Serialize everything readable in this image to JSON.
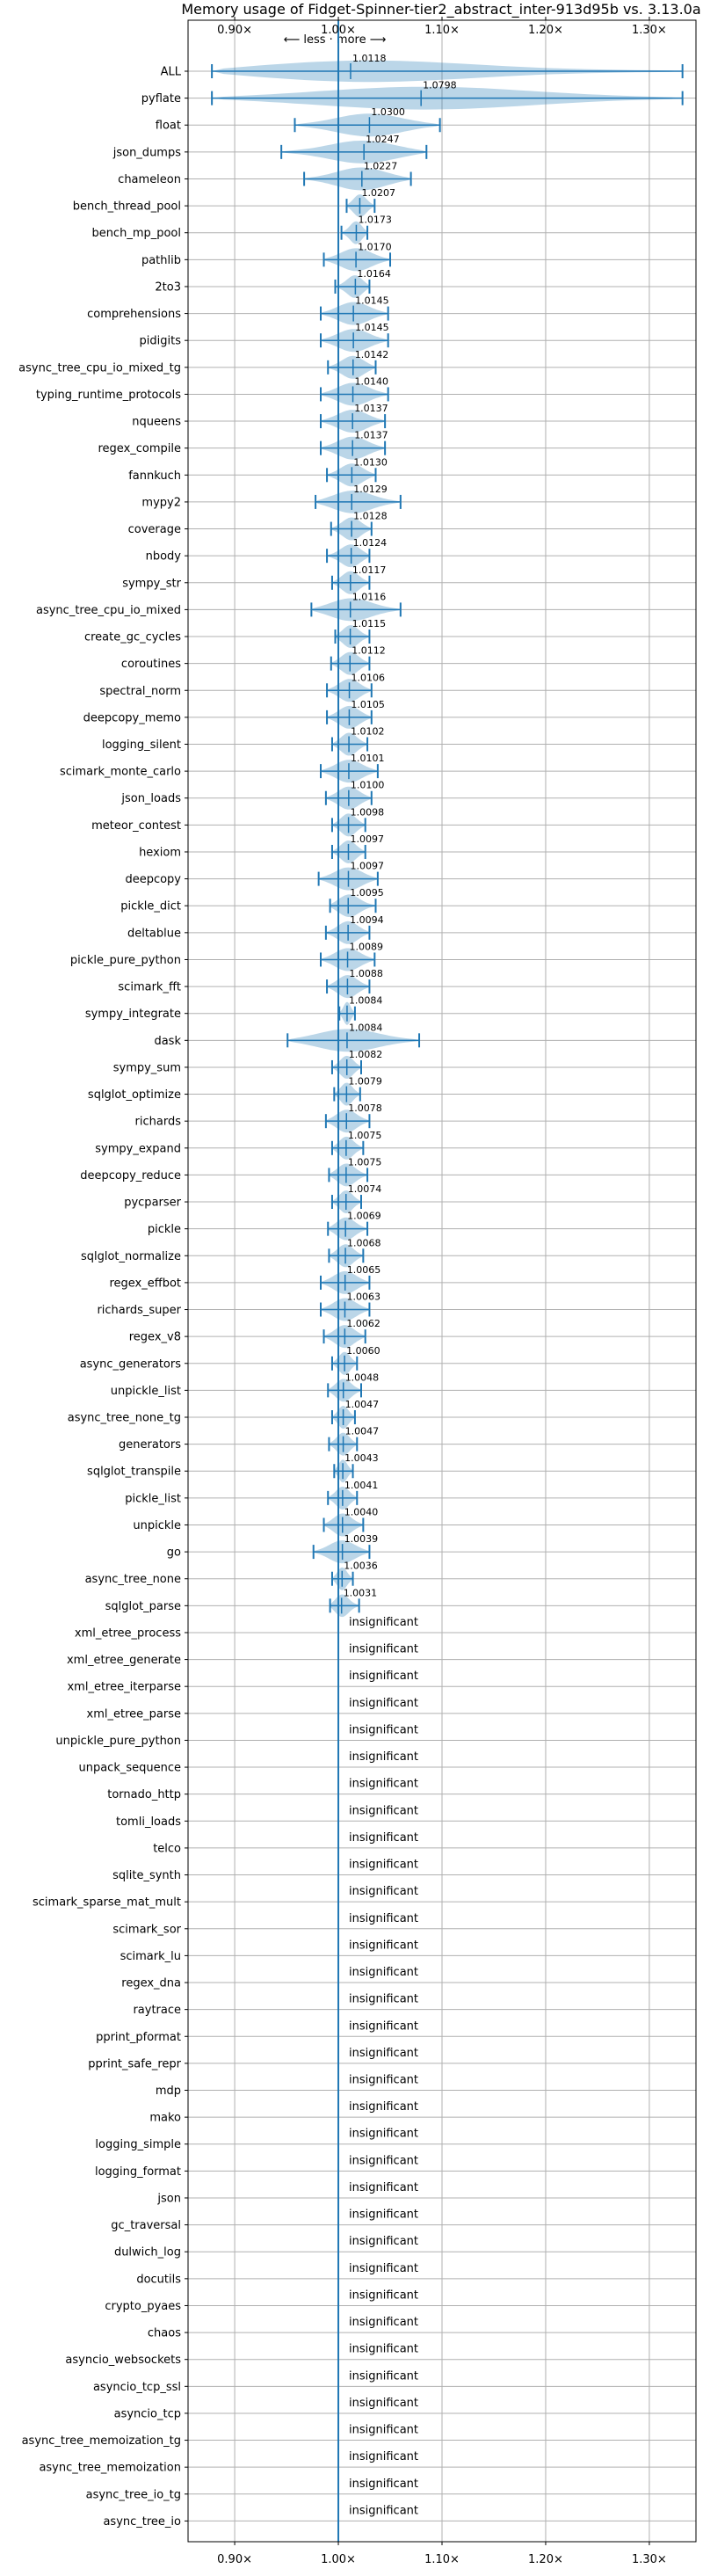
{
  "chart_data": {
    "type": "violin",
    "title": "Memory usage of Fidget-Spinner-tier2_abstract_inter-913d95b vs. 3.13.0a",
    "direction_label": "⟵ less · more ⟶",
    "xlim": [
      0.855,
      1.345
    ],
    "xticks": [
      0.9,
      1.0,
      1.1,
      1.2,
      1.3
    ],
    "xtick_labels": [
      "0.90×",
      "1.00×",
      "1.10×",
      "1.20×",
      "1.30×"
    ],
    "grid": true,
    "insignificant_label": "insignificant",
    "rows": [
      {
        "name": "ALL",
        "value": "1.0118",
        "mean": 1.0118,
        "min": 0.878,
        "max": 1.332
      },
      {
        "name": "pyflate",
        "value": "1.0798",
        "mean": 1.0798,
        "min": 0.878,
        "max": 1.332
      },
      {
        "name": "float",
        "value": "1.0300",
        "mean": 1.03,
        "min": 0.958,
        "max": 1.098
      },
      {
        "name": "json_dumps",
        "value": "1.0247",
        "mean": 1.0247,
        "min": 0.945,
        "max": 1.085
      },
      {
        "name": "chameleon",
        "value": "1.0227",
        "mean": 1.0227,
        "min": 0.967,
        "max": 1.07
      },
      {
        "name": "bench_thread_pool",
        "value": "1.0207",
        "mean": 1.0207,
        "min": 1.008,
        "max": 1.035
      },
      {
        "name": "bench_mp_pool",
        "value": "1.0173",
        "mean": 1.0173,
        "min": 1.003,
        "max": 1.028
      },
      {
        "name": "pathlib",
        "value": "1.0170",
        "mean": 1.017,
        "min": 0.986,
        "max": 1.05
      },
      {
        "name": "2to3",
        "value": "1.0164",
        "mean": 1.0164,
        "min": 0.997,
        "max": 1.03
      },
      {
        "name": "comprehensions",
        "value": "1.0145",
        "mean": 1.0145,
        "min": 0.983,
        "max": 1.048
      },
      {
        "name": "pidigits",
        "value": "1.0145",
        "mean": 1.0145,
        "min": 0.983,
        "max": 1.048
      },
      {
        "name": "async_tree_cpu_io_mixed_tg",
        "value": "1.0142",
        "mean": 1.0142,
        "min": 0.99,
        "max": 1.036
      },
      {
        "name": "typing_runtime_protocols",
        "value": "1.0140",
        "mean": 1.014,
        "min": 0.983,
        "max": 1.048
      },
      {
        "name": "nqueens",
        "value": "1.0137",
        "mean": 1.0137,
        "min": 0.983,
        "max": 1.045
      },
      {
        "name": "regex_compile",
        "value": "1.0137",
        "mean": 1.0137,
        "min": 0.983,
        "max": 1.045
      },
      {
        "name": "fannkuch",
        "value": "1.0130",
        "mean": 1.013,
        "min": 0.989,
        "max": 1.036
      },
      {
        "name": "mypy2",
        "value": "1.0129",
        "mean": 1.0129,
        "min": 0.978,
        "max": 1.06
      },
      {
        "name": "coverage",
        "value": "1.0128",
        "mean": 1.0128,
        "min": 0.993,
        "max": 1.032
      },
      {
        "name": "nbody",
        "value": "1.0124",
        "mean": 1.0124,
        "min": 0.989,
        "max": 1.03
      },
      {
        "name": "sympy_str",
        "value": "1.0117",
        "mean": 1.0117,
        "min": 0.994,
        "max": 1.03
      },
      {
        "name": "async_tree_cpu_io_mixed",
        "value": "1.0116",
        "mean": 1.0116,
        "min": 0.974,
        "max": 1.06
      },
      {
        "name": "create_gc_cycles",
        "value": "1.0115",
        "mean": 1.0115,
        "min": 0.997,
        "max": 1.03
      },
      {
        "name": "coroutines",
        "value": "1.0112",
        "mean": 1.0112,
        "min": 0.993,
        "max": 1.03
      },
      {
        "name": "spectral_norm",
        "value": "1.0106",
        "mean": 1.0106,
        "min": 0.989,
        "max": 1.032
      },
      {
        "name": "deepcopy_memo",
        "value": "1.0105",
        "mean": 1.0105,
        "min": 0.989,
        "max": 1.032
      },
      {
        "name": "logging_silent",
        "value": "1.0102",
        "mean": 1.0102,
        "min": 0.994,
        "max": 1.028
      },
      {
        "name": "scimark_monte_carlo",
        "value": "1.0101",
        "mean": 1.0101,
        "min": 0.983,
        "max": 1.038
      },
      {
        "name": "json_loads",
        "value": "1.0100",
        "mean": 1.01,
        "min": 0.988,
        "max": 1.032
      },
      {
        "name": "meteor_contest",
        "value": "1.0098",
        "mean": 1.0098,
        "min": 0.994,
        "max": 1.026
      },
      {
        "name": "hexiom",
        "value": "1.0097",
        "mean": 1.0097,
        "min": 0.994,
        "max": 1.026
      },
      {
        "name": "deepcopy",
        "value": "1.0097",
        "mean": 1.0097,
        "min": 0.981,
        "max": 1.038
      },
      {
        "name": "pickle_dict",
        "value": "1.0095",
        "mean": 1.0095,
        "min": 0.992,
        "max": 1.036
      },
      {
        "name": "deltablue",
        "value": "1.0094",
        "mean": 1.0094,
        "min": 0.988,
        "max": 1.03
      },
      {
        "name": "pickle_pure_python",
        "value": "1.0089",
        "mean": 1.0089,
        "min": 0.983,
        "max": 1.035
      },
      {
        "name": "scimark_fft",
        "value": "1.0088",
        "mean": 1.0088,
        "min": 0.989,
        "max": 1.03
      },
      {
        "name": "sympy_integrate",
        "value": "1.0084",
        "mean": 1.0084,
        "min": 1.001,
        "max": 1.016
      },
      {
        "name": "dask",
        "value": "1.0084",
        "mean": 1.0084,
        "min": 0.951,
        "max": 1.078
      },
      {
        "name": "sympy_sum",
        "value": "1.0082",
        "mean": 1.0082,
        "min": 0.994,
        "max": 1.022
      },
      {
        "name": "sqlglot_optimize",
        "value": "1.0079",
        "mean": 1.0079,
        "min": 0.996,
        "max": 1.021
      },
      {
        "name": "richards",
        "value": "1.0078",
        "mean": 1.0078,
        "min": 0.988,
        "max": 1.03
      },
      {
        "name": "sympy_expand",
        "value": "1.0075",
        "mean": 1.0075,
        "min": 0.994,
        "max": 1.024
      },
      {
        "name": "deepcopy_reduce",
        "value": "1.0075",
        "mean": 1.0075,
        "min": 0.991,
        "max": 1.028
      },
      {
        "name": "pycparser",
        "value": "1.0074",
        "mean": 1.0074,
        "min": 0.994,
        "max": 1.022
      },
      {
        "name": "pickle",
        "value": "1.0069",
        "mean": 1.0069,
        "min": 0.99,
        "max": 1.028
      },
      {
        "name": "sqlglot_normalize",
        "value": "1.0068",
        "mean": 1.0068,
        "min": 0.991,
        "max": 1.024
      },
      {
        "name": "regex_effbot",
        "value": "1.0065",
        "mean": 1.0065,
        "min": 0.983,
        "max": 1.03
      },
      {
        "name": "richards_super",
        "value": "1.0063",
        "mean": 1.0063,
        "min": 0.983,
        "max": 1.03
      },
      {
        "name": "regex_v8",
        "value": "1.0062",
        "mean": 1.0062,
        "min": 0.986,
        "max": 1.026
      },
      {
        "name": "async_generators",
        "value": "1.0060",
        "mean": 1.006,
        "min": 0.994,
        "max": 1.018
      },
      {
        "name": "unpickle_list",
        "value": "1.0048",
        "mean": 1.0048,
        "min": 0.99,
        "max": 1.022
      },
      {
        "name": "async_tree_none_tg",
        "value": "1.0047",
        "mean": 1.0047,
        "min": 0.994,
        "max": 1.016
      },
      {
        "name": "generators",
        "value": "1.0047",
        "mean": 1.0047,
        "min": 0.991,
        "max": 1.018
      },
      {
        "name": "sqlglot_transpile",
        "value": "1.0043",
        "mean": 1.0043,
        "min": 0.996,
        "max": 1.014
      },
      {
        "name": "pickle_list",
        "value": "1.0041",
        "mean": 1.0041,
        "min": 0.99,
        "max": 1.018
      },
      {
        "name": "unpickle",
        "value": "1.0040",
        "mean": 1.004,
        "min": 0.986,
        "max": 1.024
      },
      {
        "name": "go",
        "value": "1.0039",
        "mean": 1.0039,
        "min": 0.976,
        "max": 1.03
      },
      {
        "name": "async_tree_none",
        "value": "1.0036",
        "mean": 1.0036,
        "min": 0.994,
        "max": 1.014
      },
      {
        "name": "sqlglot_parse",
        "value": "1.0031",
        "mean": 1.0031,
        "min": 0.992,
        "max": 1.02
      },
      {
        "name": "xml_etree_process",
        "value": "insignificant"
      },
      {
        "name": "xml_etree_generate",
        "value": "insignificant"
      },
      {
        "name": "xml_etree_iterparse",
        "value": "insignificant"
      },
      {
        "name": "xml_etree_parse",
        "value": "insignificant"
      },
      {
        "name": "unpickle_pure_python",
        "value": "insignificant"
      },
      {
        "name": "unpack_sequence",
        "value": "insignificant"
      },
      {
        "name": "tornado_http",
        "value": "insignificant"
      },
      {
        "name": "tomli_loads",
        "value": "insignificant"
      },
      {
        "name": "telco",
        "value": "insignificant"
      },
      {
        "name": "sqlite_synth",
        "value": "insignificant"
      },
      {
        "name": "scimark_sparse_mat_mult",
        "value": "insignificant"
      },
      {
        "name": "scimark_sor",
        "value": "insignificant"
      },
      {
        "name": "scimark_lu",
        "value": "insignificant"
      },
      {
        "name": "regex_dna",
        "value": "insignificant"
      },
      {
        "name": "raytrace",
        "value": "insignificant"
      },
      {
        "name": "pprint_pformat",
        "value": "insignificant"
      },
      {
        "name": "pprint_safe_repr",
        "value": "insignificant"
      },
      {
        "name": "mdp",
        "value": "insignificant"
      },
      {
        "name": "mako",
        "value": "insignificant"
      },
      {
        "name": "logging_simple",
        "value": "insignificant"
      },
      {
        "name": "logging_format",
        "value": "insignificant"
      },
      {
        "name": "json",
        "value": "insignificant"
      },
      {
        "name": "gc_traversal",
        "value": "insignificant"
      },
      {
        "name": "dulwich_log",
        "value": "insignificant"
      },
      {
        "name": "docutils",
        "value": "insignificant"
      },
      {
        "name": "crypto_pyaes",
        "value": "insignificant"
      },
      {
        "name": "chaos",
        "value": "insignificant"
      },
      {
        "name": "asyncio_websockets",
        "value": "insignificant"
      },
      {
        "name": "asyncio_tcp_ssl",
        "value": "insignificant"
      },
      {
        "name": "asyncio_tcp",
        "value": "insignificant"
      },
      {
        "name": "async_tree_memoization_tg",
        "value": "insignificant"
      },
      {
        "name": "async_tree_memoization",
        "value": "insignificant"
      },
      {
        "name": "async_tree_io_tg",
        "value": "insignificant"
      },
      {
        "name": "async_tree_io",
        "value": "insignificant"
      }
    ]
  },
  "colors": {
    "line": "#1f77b4",
    "violin": "#1f77b4",
    "grid": "#b0b0b0",
    "axis": "#000000"
  }
}
